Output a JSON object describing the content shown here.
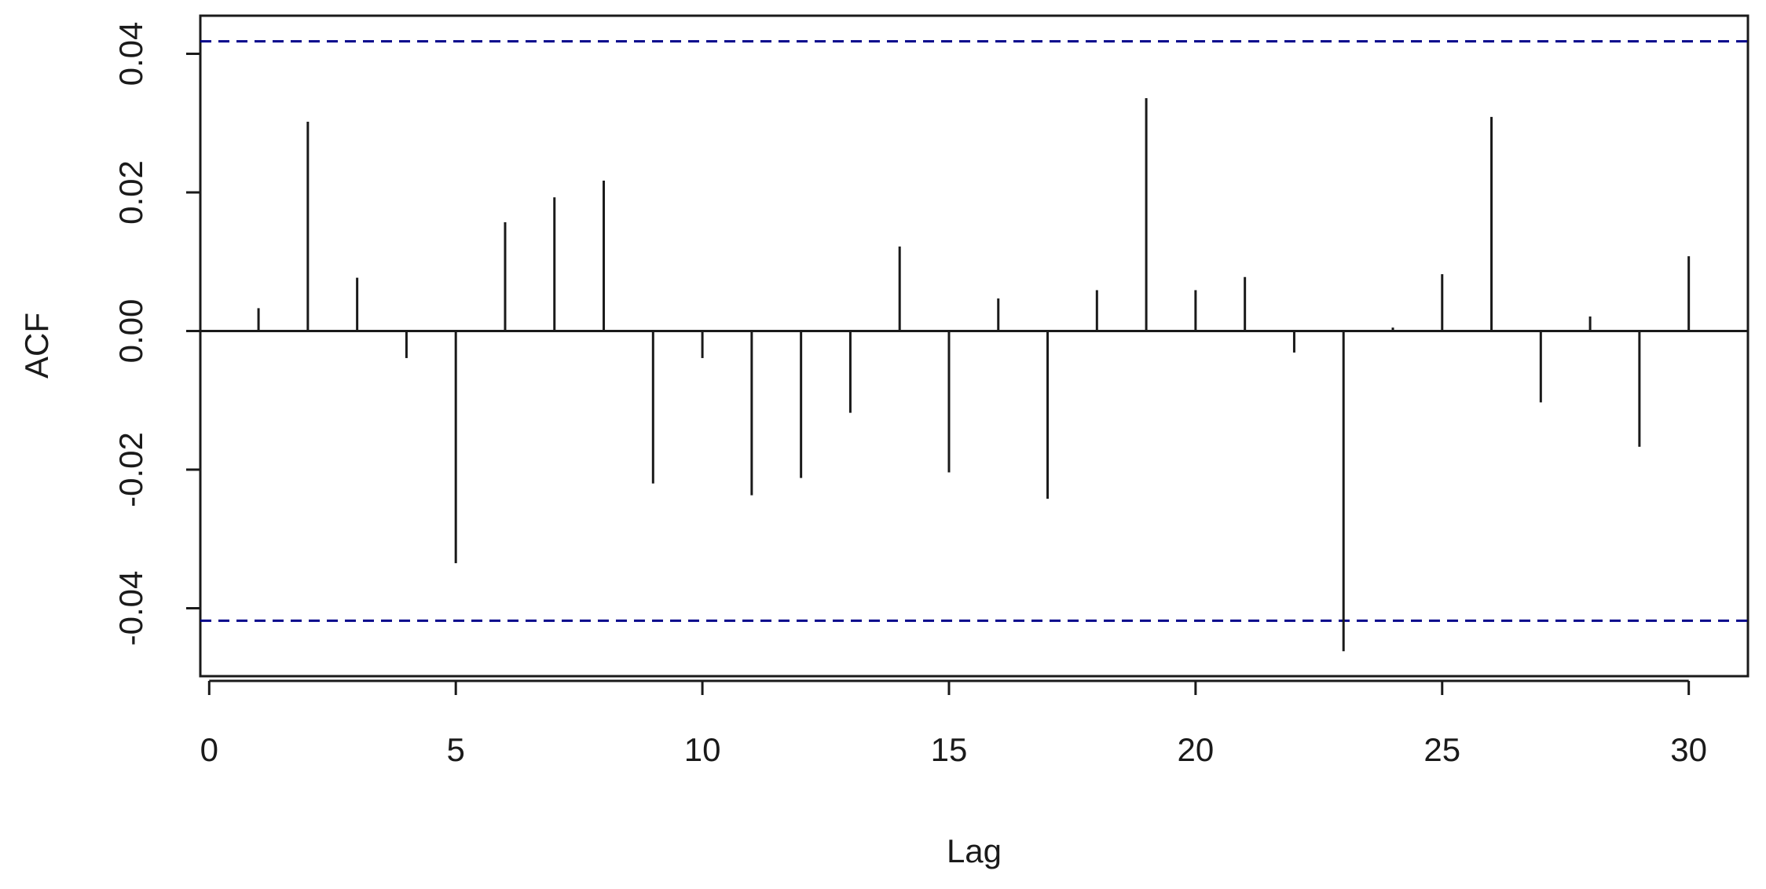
{
  "chart_data": {
    "type": "bar",
    "x_label": "Lag",
    "y_label": "ACF",
    "x": [
      1,
      2,
      3,
      4,
      5,
      6,
      7,
      8,
      9,
      10,
      11,
      12,
      13,
      14,
      15,
      16,
      17,
      18,
      19,
      20,
      21,
      22,
      23,
      24,
      25,
      26,
      27,
      28,
      29,
      30
    ],
    "values": [
      0.0033,
      0.0302,
      0.0077,
      -0.0039,
      -0.0335,
      0.0157,
      0.0193,
      0.0217,
      -0.022,
      -0.0039,
      -0.0237,
      -0.0212,
      -0.0118,
      0.0122,
      -0.0204,
      0.0047,
      -0.0242,
      0.0059,
      0.0336,
      0.0059,
      0.0078,
      -0.0031,
      -0.0462,
      0.0005,
      0.0082,
      0.0309,
      -0.0103,
      0.0021,
      -0.0167,
      0.0108
    ],
    "color": "#1a1a1a",
    "ci": [
      -0.0418,
      0.0418
    ],
    "ci_color": "#00008b",
    "xlim": [
      -0.18,
      31.2
    ],
    "ylim": [
      -0.0498,
      0.0455
    ],
    "xticks": [
      0,
      5,
      10,
      15,
      20,
      25,
      30
    ],
    "yticks": [
      -0.04,
      -0.02,
      {
        "value": 0,
        "label": "0.00"
      },
      0.02,
      0.04
    ]
  }
}
